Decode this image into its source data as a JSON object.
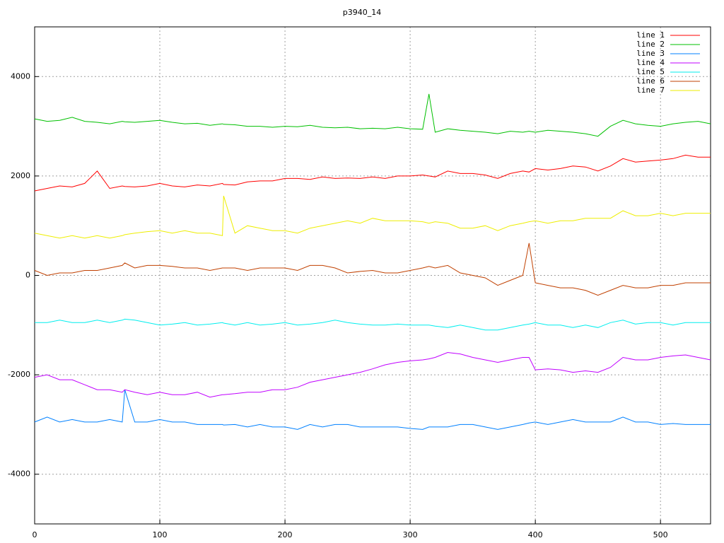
{
  "chart_data": {
    "type": "line",
    "title": "p3940_14",
    "x": [
      0,
      10,
      20,
      30,
      40,
      50,
      60,
      70,
      72,
      80,
      90,
      100,
      110,
      120,
      130,
      140,
      150,
      151,
      160,
      170,
      180,
      190,
      200,
      210,
      220,
      230,
      240,
      250,
      260,
      270,
      280,
      290,
      300,
      310,
      315,
      320,
      330,
      340,
      350,
      360,
      370,
      380,
      390,
      395,
      400,
      410,
      420,
      430,
      440,
      450,
      460,
      470,
      480,
      490,
      500,
      510,
      520,
      530,
      540
    ],
    "series": [
      {
        "name": "line 1",
        "color": "#ff0000",
        "values": [
          1700,
          1750,
          1800,
          1780,
          1850,
          2100,
          1750,
          1800,
          1790,
          1780,
          1800,
          1850,
          1800,
          1780,
          1820,
          1800,
          1850,
          1830,
          1820,
          1880,
          1900,
          1900,
          1950,
          1950,
          1930,
          1980,
          1950,
          1960,
          1950,
          1980,
          1950,
          2000,
          2000,
          2020,
          2000,
          1980,
          2100,
          2050,
          2050,
          2020,
          1950,
          2050,
          2100,
          2080,
          2150,
          2120,
          2150,
          2200,
          2180,
          2100,
          2200,
          2350,
          2280,
          2300,
          2320,
          2350,
          2420,
          2380,
          2380
        ]
      },
      {
        "name": "line 2",
        "color": "#00c000",
        "values": [
          3150,
          3100,
          3120,
          3180,
          3100,
          3080,
          3050,
          3100,
          3090,
          3080,
          3100,
          3120,
          3080,
          3050,
          3060,
          3020,
          3050,
          3040,
          3030,
          3000,
          3000,
          2980,
          3000,
          2990,
          3020,
          2980,
          2970,
          2980,
          2950,
          2960,
          2950,
          2980,
          2950,
          2940,
          3650,
          2880,
          2950,
          2920,
          2900,
          2880,
          2850,
          2900,
          2880,
          2900,
          2880,
          2920,
          2900,
          2880,
          2850,
          2800,
          3000,
          3120,
          3050,
          3020,
          3000,
          3050,
          3080,
          3100,
          3050
        ]
      },
      {
        "name": "line 3",
        "color": "#0080ff",
        "values": [
          -2950,
          -2850,
          -2950,
          -2900,
          -2950,
          -2950,
          -2900,
          -2950,
          -2300,
          -2950,
          -2950,
          -2900,
          -2950,
          -2950,
          -3000,
          -3000,
          -3000,
          -3010,
          -3000,
          -3050,
          -3000,
          -3050,
          -3050,
          -3100,
          -3000,
          -3050,
          -3000,
          -3000,
          -3050,
          -3050,
          -3050,
          -3050,
          -3080,
          -3100,
          -3050,
          -3050,
          -3050,
          -3000,
          -3000,
          -3050,
          -3100,
          -3050,
          -3000,
          -2970,
          -2950,
          -3000,
          -2950,
          -2900,
          -2950,
          -2950,
          -2950,
          -2850,
          -2950,
          -2950,
          -3000,
          -2980,
          -3000,
          -3000,
          -3000
        ]
      },
      {
        "name": "line 4",
        "color": "#c000ff",
        "values": [
          -2050,
          -2000,
          -2100,
          -2100,
          -2200,
          -2300,
          -2300,
          -2350,
          -2300,
          -2350,
          -2400,
          -2350,
          -2400,
          -2400,
          -2350,
          -2450,
          -2400,
          -2400,
          -2380,
          -2350,
          -2350,
          -2300,
          -2300,
          -2250,
          -2150,
          -2100,
          -2050,
          -2000,
          -1950,
          -1880,
          -1800,
          -1750,
          -1720,
          -1700,
          -1680,
          -1650,
          -1550,
          -1580,
          -1650,
          -1700,
          -1750,
          -1700,
          -1650,
          -1650,
          -1900,
          -1880,
          -1900,
          -1950,
          -1920,
          -1950,
          -1850,
          -1650,
          -1700,
          -1700,
          -1650,
          -1620,
          -1600,
          -1650,
          -1700
        ]
      },
      {
        "name": "line 5",
        "color": "#00eeee",
        "values": [
          -950,
          -950,
          -900,
          -950,
          -950,
          -900,
          -950,
          -900,
          -880,
          -900,
          -950,
          -1000,
          -980,
          -950,
          -1000,
          -980,
          -950,
          -960,
          -1000,
          -950,
          -1000,
          -980,
          -950,
          -1000,
          -980,
          -950,
          -900,
          -950,
          -980,
          -1000,
          -1000,
          -980,
          -1000,
          -1000,
          -1000,
          -1020,
          -1050,
          -1000,
          -1050,
          -1100,
          -1100,
          -1050,
          -1000,
          -980,
          -950,
          -1000,
          -1000,
          -1050,
          -1000,
          -1050,
          -950,
          -900,
          -980,
          -950,
          -950,
          -1000,
          -950,
          -950,
          -950
        ]
      },
      {
        "name": "line 6",
        "color": "#c04000",
        "values": [
          100,
          0,
          50,
          50,
          100,
          100,
          150,
          200,
          250,
          150,
          200,
          200,
          180,
          150,
          150,
          100,
          150,
          150,
          150,
          100,
          150,
          150,
          150,
          100,
          200,
          200,
          150,
          50,
          80,
          100,
          50,
          50,
          100,
          150,
          180,
          150,
          200,
          50,
          0,
          -50,
          -200,
          -100,
          0,
          650,
          -150,
          -200,
          -250,
          -250,
          -300,
          -400,
          -300,
          -200,
          -250,
          -250,
          -200,
          -200,
          -150,
          -150,
          -150
        ]
      },
      {
        "name": "line 7",
        "color": "#eeee00",
        "values": [
          850,
          800,
          750,
          800,
          750,
          800,
          750,
          800,
          820,
          850,
          880,
          900,
          850,
          900,
          850,
          850,
          800,
          1600,
          850,
          1000,
          950,
          900,
          900,
          850,
          950,
          1000,
          1050,
          1100,
          1050,
          1150,
          1100,
          1100,
          1100,
          1080,
          1050,
          1080,
          1050,
          950,
          950,
          1000,
          900,
          1000,
          1050,
          1080,
          1100,
          1050,
          1100,
          1100,
          1150,
          1150,
          1150,
          1300,
          1200,
          1200,
          1250,
          1200,
          1250,
          1250,
          1250
        ]
      }
    ],
    "xlim": [
      0,
      540
    ],
    "ylim": [
      -5000,
      5000
    ],
    "xticks": [
      0,
      100,
      200,
      300,
      400,
      500
    ],
    "yticks": [
      -4000,
      -2000,
      0,
      2000,
      4000
    ],
    "grid": true,
    "legend": "top-right"
  }
}
